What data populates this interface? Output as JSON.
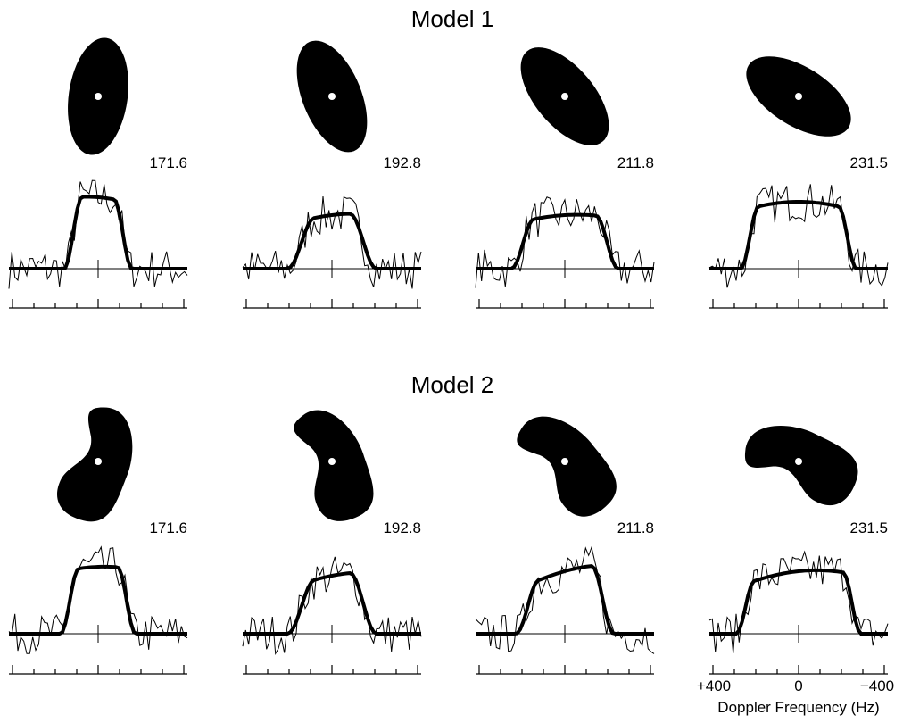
{
  "sections": [
    {
      "title": "Model 1",
      "panels": [
        {
          "label": "171.6"
        },
        {
          "label": "192.8"
        },
        {
          "label": "211.8"
        },
        {
          "label": "231.5"
        }
      ]
    },
    {
      "title": "Model 2",
      "panels": [
        {
          "label": "171.6"
        },
        {
          "label": "192.8"
        },
        {
          "label": "211.8"
        },
        {
          "label": "231.5"
        }
      ]
    }
  ],
  "axis": {
    "ticks": [
      "+400",
      "0",
      "−400"
    ],
    "label": "Doppler Frequency  (Hz)"
  }
}
